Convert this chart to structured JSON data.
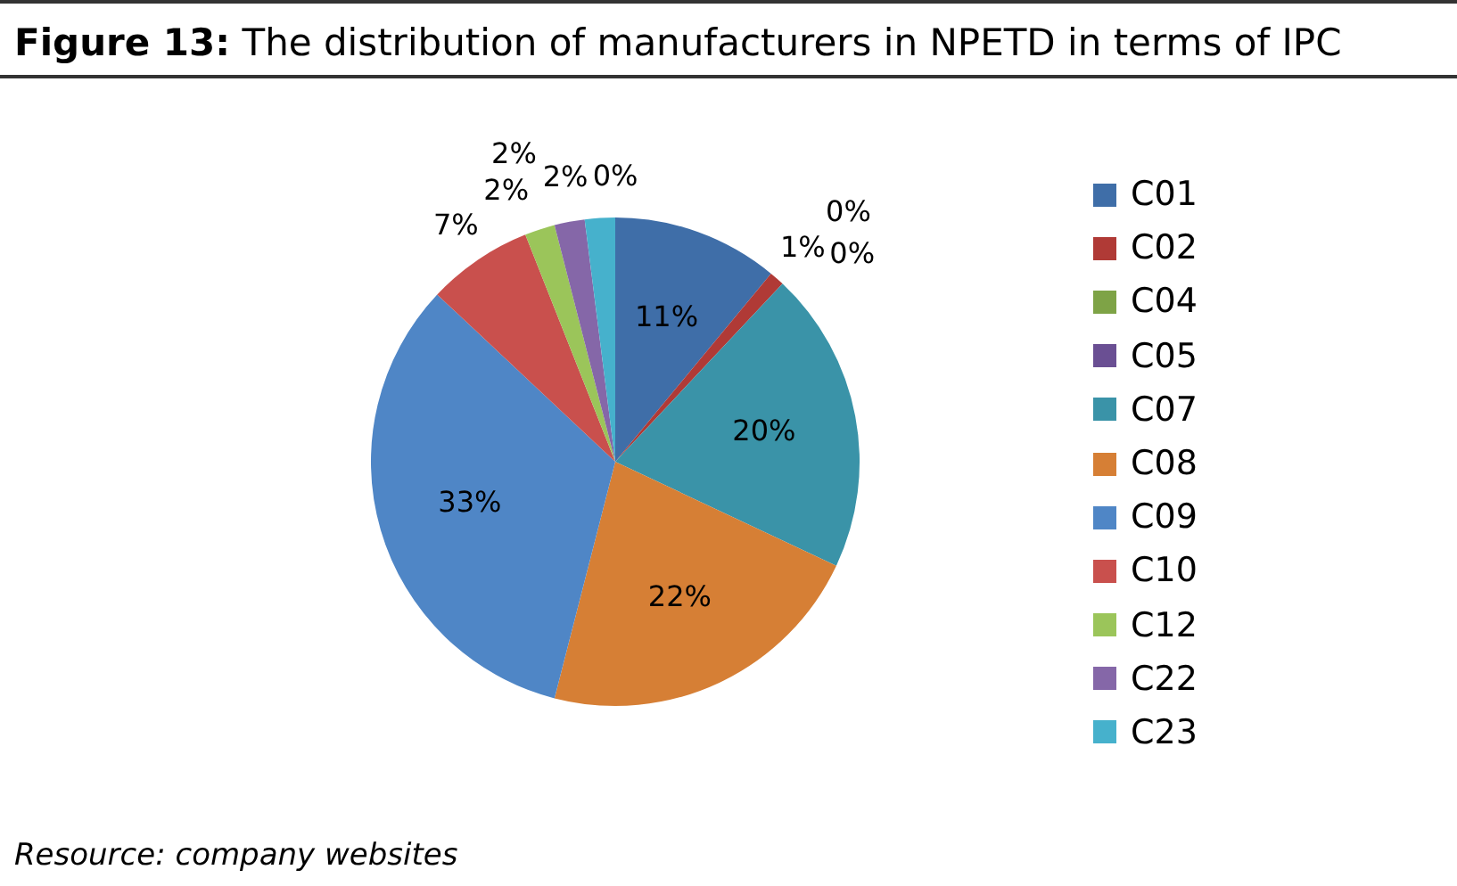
{
  "chart_data": {
    "type": "pie",
    "title": "Figure 13: The distribution of manufacturers in NPETD in terms of IPC",
    "categories": [
      "C01",
      "C02",
      "C04",
      "C05",
      "C07",
      "C08",
      "C09",
      "C10",
      "C12",
      "C22",
      "C23",
      null
    ],
    "values": [
      11,
      1,
      0,
      0,
      20,
      22,
      33,
      7,
      2,
      2,
      2,
      0
    ],
    "colors": [
      "#3f6ea8",
      "#b03a36",
      "#7ea346",
      "#6a4f93",
      "#3a93a8",
      "#d67f35",
      "#4f86c6",
      "#c9504d",
      "#9bc55a",
      "#8567a8",
      "#46b1cc",
      "#f59a4c"
    ],
    "value_labels": [
      "11%",
      "1%",
      "0%",
      "0%",
      "20%",
      "22%",
      "33%",
      "7%",
      "2%",
      "2%",
      "2%",
      "0%"
    ],
    "legend": "right",
    "annotations": [
      "Resource: company websites"
    ]
  }
}
